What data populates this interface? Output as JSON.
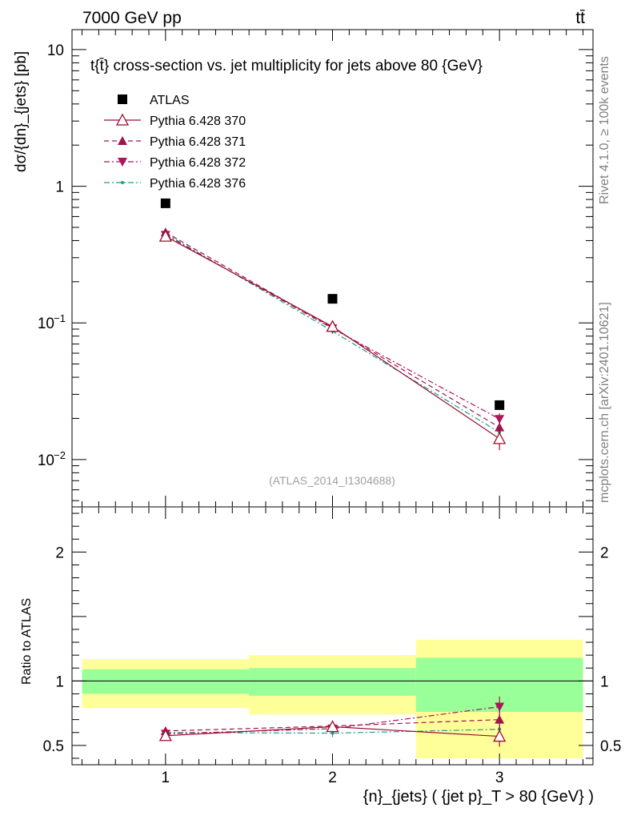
{
  "header": {
    "energy": "7000 GeV pp",
    "process": "tt̄",
    "title": "t{t̄} cross-section vs. jet multiplicity for jets above 80 {GeV}",
    "analysis_id": "(ATLAS_2014_I1304688)",
    "rivet_label": "Rivet 4.1.0, ≥ 100k events",
    "site_label": "mcplots.cern.ch [arXiv:2401.10621]"
  },
  "axes": {
    "main_ylabel": "dσ/{dn}_{jets} [pb]",
    "ratio_ylabel": "Ratio to ATLAS",
    "xlabel": "{n}_{jets} ( {jet p}_T > 80 {GeV} )"
  },
  "colors": {
    "data": "#000000",
    "p370": "#9b0f2d",
    "p371": "#a01450",
    "p372": "#b0145a",
    "p376": "#1aa08c",
    "band_inner": "#99ff99",
    "band_outer": "#ffff99"
  },
  "chart_data": [
    {
      "type": "scatter",
      "panel": "main",
      "yscale": "log",
      "xlim": [
        0.44,
        3.56
      ],
      "ylim": [
        0.0045,
        14
      ],
      "x_ticks": [
        "1",
        "2",
        "3"
      ],
      "y_ticks": [
        "10^-2",
        "10^-1",
        "1",
        "10"
      ],
      "legend_position": "top-left",
      "series": [
        {
          "name": "ATLAS",
          "key": "atlas",
          "marker": "square-filled",
          "x": [
            1,
            2,
            3
          ],
          "values": [
            0.75,
            0.15,
            0.025
          ],
          "errors": [
            0.0,
            0.0,
            0.0
          ]
        },
        {
          "name": "Pythia 6.428 370",
          "key": "p370",
          "marker": "triangle-up-open",
          "line": "solid",
          "x": [
            1,
            2,
            3
          ],
          "values": [
            0.43,
            0.094,
            0.0142
          ],
          "errors": [
            0.01,
            0.004,
            0.0025
          ]
        },
        {
          "name": "Pythia 6.428 371",
          "key": "p371",
          "marker": "triangle-up-filled",
          "line": "dashed",
          "x": [
            1,
            2,
            3
          ],
          "values": [
            0.46,
            0.092,
            0.0172
          ],
          "errors": [
            0.01,
            0.004,
            0.002
          ]
        },
        {
          "name": "Pythia 6.428 372",
          "key": "p372",
          "marker": "triangle-down-filled",
          "line": "dashdot",
          "x": [
            1,
            2,
            3
          ],
          "values": [
            0.44,
            0.091,
            0.0198
          ],
          "errors": [
            0.01,
            0.004,
            0.002
          ]
        },
        {
          "name": "Pythia 6.428 376",
          "key": "p376",
          "marker": "dot",
          "line": "dashdot",
          "x": [
            1,
            2,
            3
          ],
          "values": [
            0.45,
            0.087,
            0.0158
          ],
          "errors": [
            0.01,
            0.004,
            0.002
          ]
        }
      ]
    },
    {
      "type": "scatter",
      "panel": "ratio",
      "yscale": "linear",
      "xlim": [
        0.44,
        3.56
      ],
      "ylim": [
        0.35,
        2.35
      ],
      "y_ticks": [
        "0.5",
        "1",
        "2"
      ],
      "reference": 1.0,
      "bands": [
        {
          "x0": 0.5,
          "x1": 1.5,
          "inner": [
            0.9,
            1.09
          ],
          "outer": [
            0.79,
            1.17
          ]
        },
        {
          "x0": 1.5,
          "x1": 2.5,
          "inner": [
            0.885,
            1.1
          ],
          "outer": [
            0.74,
            1.2
          ]
        },
        {
          "x0": 2.5,
          "x1": 3.5,
          "inner": [
            0.76,
            1.18
          ],
          "outer": [
            0.4,
            1.32
          ]
        }
      ],
      "series": [
        {
          "name": "Pythia 6.428 370",
          "key": "p370",
          "x": [
            1,
            2,
            3
          ],
          "values": [
            0.575,
            0.645,
            0.57
          ],
          "errors": [
            0.015,
            0.03,
            0.08
          ]
        },
        {
          "name": "Pythia 6.428 371",
          "key": "p371",
          "x": [
            1,
            2,
            3
          ],
          "values": [
            0.612,
            0.65,
            0.7
          ],
          "errors": [
            0.015,
            0.03,
            0.07
          ]
        },
        {
          "name": "Pythia 6.428 372",
          "key": "p372",
          "x": [
            1,
            2,
            3
          ],
          "values": [
            0.59,
            0.63,
            0.8
          ],
          "errors": [
            0.015,
            0.03,
            0.08
          ]
        },
        {
          "name": "Pythia 6.428 376",
          "key": "p376",
          "x": [
            1,
            2,
            3
          ],
          "values": [
            0.6,
            0.595,
            0.625
          ],
          "errors": [
            0.015,
            0.03,
            0.06
          ]
        }
      ]
    }
  ]
}
